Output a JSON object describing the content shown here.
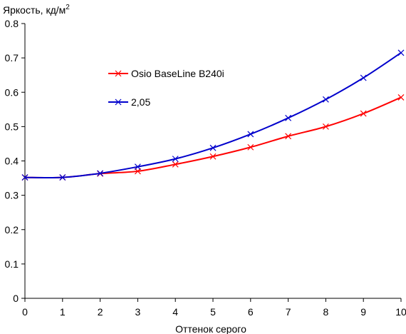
{
  "chart_data": {
    "type": "line",
    "ylabel": "Яркость, кд/м",
    "ylabel_superscript": "2",
    "xlabel": "Оттенок серого",
    "xlim": [
      0,
      10
    ],
    "ylim": [
      0,
      0.8
    ],
    "x_ticks": [
      "0",
      "1",
      "2",
      "3",
      "4",
      "5",
      "6",
      "7",
      "8",
      "9",
      "10"
    ],
    "y_ticks": [
      "0",
      "0.1",
      "0.2",
      "0.3",
      "0.4",
      "0.5",
      "0.6",
      "0.7",
      "0.8"
    ],
    "grid": false,
    "legend_position": "upper-left-inside",
    "marker": "x",
    "series": [
      {
        "name": "Osio BaseLine B240i",
        "color": "#ff0000",
        "x": [
          0,
          1,
          2,
          3,
          4,
          5,
          6,
          7,
          8,
          9,
          10
        ],
        "values": [
          0.352,
          0.352,
          0.363,
          0.37,
          0.39,
          0.413,
          0.44,
          0.472,
          0.5,
          0.538,
          0.585
        ]
      },
      {
        "name": "2,05",
        "color": "#0000cc",
        "x": [
          0,
          1,
          2,
          3,
          4,
          5,
          6,
          7,
          8,
          9,
          10
        ],
        "values": [
          0.352,
          0.352,
          0.364,
          0.383,
          0.406,
          0.438,
          0.478,
          0.525,
          0.579,
          0.642,
          0.715
        ]
      }
    ]
  }
}
